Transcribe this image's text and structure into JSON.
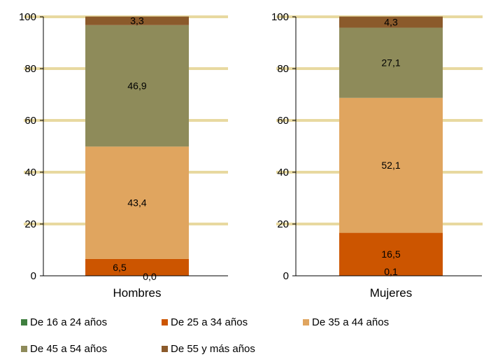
{
  "chart_data": [
    {
      "type": "bar",
      "stacked": true,
      "categories": [
        "Hombres"
      ],
      "ylim": [
        0,
        100
      ],
      "yticks": [
        0,
        20,
        40,
        60,
        80,
        100
      ],
      "grid": true,
      "series": [
        {
          "name": "De 16 a 24 años",
          "values": [
            0.0
          ]
        },
        {
          "name": "De 25 a 34 años",
          "values": [
            6.5
          ]
        },
        {
          "name": "De 35 a 44 años",
          "values": [
            43.4
          ]
        },
        {
          "name": "De 45 a 54 años",
          "values": [
            46.9
          ]
        },
        {
          "name": "De 55 y más años",
          "values": [
            3.3
          ]
        }
      ],
      "labels": [
        "0,0",
        "6,5",
        "43,4",
        "46,9",
        "3,3"
      ]
    },
    {
      "type": "bar",
      "stacked": true,
      "categories": [
        "Mujeres"
      ],
      "ylim": [
        0,
        100
      ],
      "yticks": [
        0,
        20,
        40,
        60,
        80,
        100
      ],
      "grid": true,
      "series": [
        {
          "name": "De 16 a 24 años",
          "values": [
            0.1
          ]
        },
        {
          "name": "De 25 a 34 años",
          "values": [
            16.5
          ]
        },
        {
          "name": "De 35 a 44 años",
          "values": [
            52.1
          ]
        },
        {
          "name": "De 45 a 54 años",
          "values": [
            27.1
          ]
        },
        {
          "name": "De 55 y más años",
          "values": [
            4.3
          ]
        }
      ],
      "labels": [
        "0,1",
        "16,5",
        "52,1",
        "27,1",
        "4,3"
      ]
    }
  ],
  "legend": {
    "placement": "bottom",
    "items": [
      {
        "label": "De 16 a 24 años",
        "color": "#3F7F3F"
      },
      {
        "label": "De 25 a 34 años",
        "color": "#CC5500"
      },
      {
        "label": "De 35 a 44 años",
        "color": "#E0A55F"
      },
      {
        "label": "De 45 a 54 años",
        "color": "#8E8B5A"
      },
      {
        "label": "De 55 y más años",
        "color": "#8B5A2B"
      }
    ]
  },
  "colors": {
    "gridline": "#E8D9A0",
    "series": [
      "#3F7F3F",
      "#CC5500",
      "#E0A55F",
      "#8E8B5A",
      "#8B5A2B"
    ]
  }
}
